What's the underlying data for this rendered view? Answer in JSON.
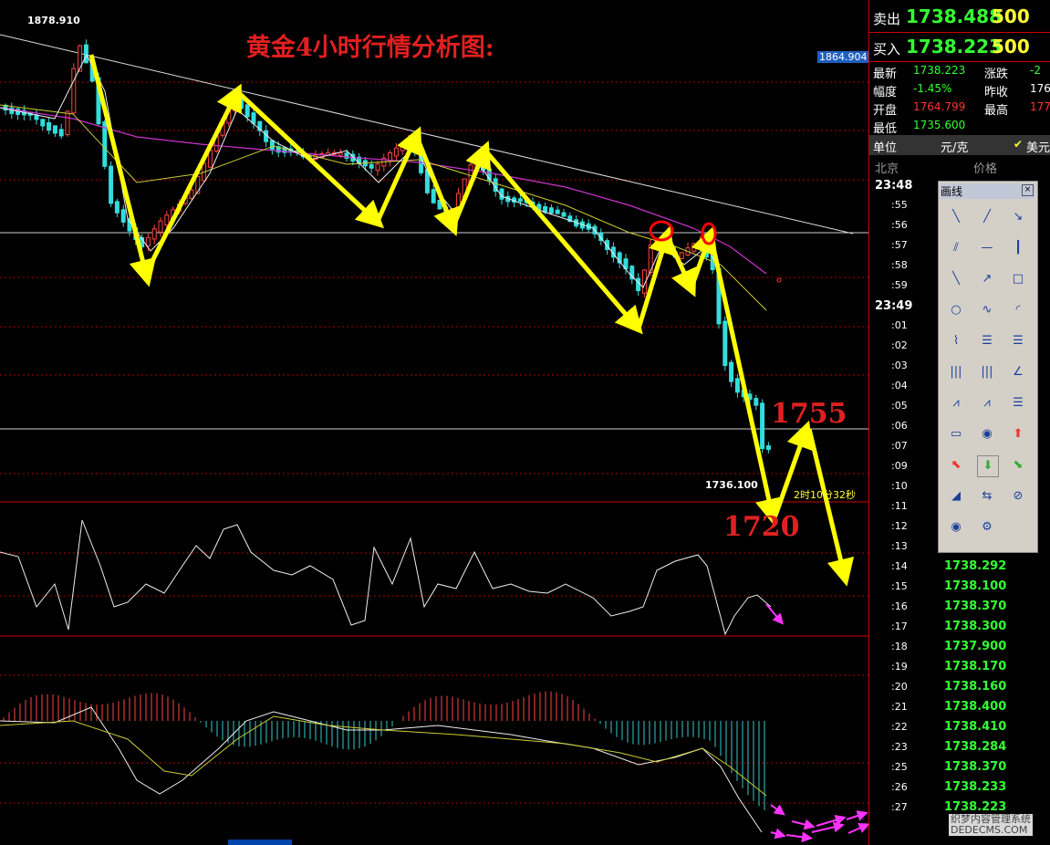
{
  "title": "黄金4小时行情分析图:",
  "chart_labels": {
    "high": "1878.910",
    "right_price": "1864.904",
    "low": "1736.100",
    "target_up": "1755",
    "target_down": "1720",
    "countdown": "2时10分32秒"
  },
  "quote": {
    "sell": {
      "label": "卖出",
      "price": "1738.488",
      "volume": "500"
    },
    "buy": {
      "label": "买入",
      "price": "1738.223",
      "volume": "500"
    },
    "stats": [
      [
        "最新",
        "1738.223",
        "涨跌",
        "-2"
      ],
      [
        "幅度",
        "-1.45%",
        "昨收",
        "176"
      ],
      [
        "开盘",
        "1764.799",
        "最高",
        "177"
      ],
      [
        "最低",
        "1735.600"
      ]
    ],
    "unit": {
      "label": "单位",
      "value": "元/克",
      "currency": "美元"
    },
    "columns": [
      "北京",
      "价格"
    ]
  },
  "ticks": [
    {
      "time": "23:48"
    },
    {
      "time": ":55"
    },
    {
      "time": ":56"
    },
    {
      "time": ":57"
    },
    {
      "time": ":58"
    },
    {
      "time": ":59"
    },
    {
      "time": "23:49"
    },
    {
      "time": ":01"
    },
    {
      "time": ":02"
    },
    {
      "time": ":03"
    },
    {
      "time": ":04"
    },
    {
      "time": ":05"
    },
    {
      "time": ":06"
    },
    {
      "time": ":07"
    },
    {
      "time": ":09"
    },
    {
      "time": ":10"
    },
    {
      "time": ":11"
    },
    {
      "time": ":12"
    },
    {
      "time": ":13"
    },
    {
      "time": ":14",
      "price": "1738.292"
    },
    {
      "time": ":15",
      "price": "1738.100"
    },
    {
      "time": ":16",
      "price": "1738.370"
    },
    {
      "time": ":17",
      "price": "1738.300"
    },
    {
      "time": ":18",
      "price": "1737.900"
    },
    {
      "time": ":19",
      "price": "1738.170"
    },
    {
      "time": ":20",
      "price": "1738.160"
    },
    {
      "time": ":21",
      "price": "1738.400"
    },
    {
      "time": ":22",
      "price": "1738.410"
    },
    {
      "time": ":23",
      "price": "1738.284"
    },
    {
      "time": ":25",
      "price": "1738.370"
    },
    {
      "time": ":26",
      "price": "1738.233"
    },
    {
      "time": ":27",
      "price": "1738.223"
    }
  ],
  "toolbox_title": "画线",
  "watermark": [
    "织梦内容管理系统",
    "DEDECMS.COM"
  ]
}
